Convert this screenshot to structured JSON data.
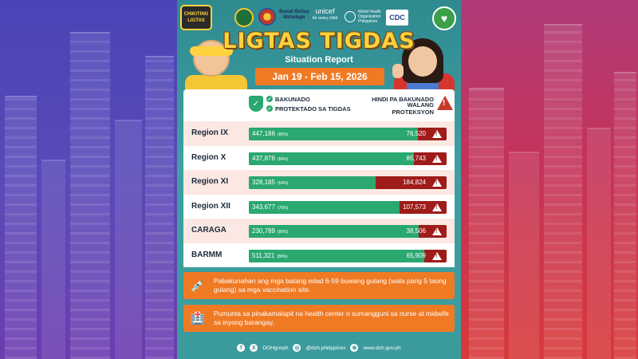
{
  "title": "LIGTAS TIGDAS",
  "subtitle": "Situation Report",
  "date_range": "Jan 19 - Feb 15, 2026",
  "logos": {
    "chikiting_line1": "CHIKITING",
    "chikiting_line2": "LIGTAS",
    "ibb_line1": "Bawat Buhay",
    "ibb_line2": "Mahalaga",
    "unicef": "unicef",
    "unicef_tag": "for every child",
    "who": "World Health Organization",
    "who_sub": "Philippines",
    "cdc": "CDC"
  },
  "legend": {
    "vaccinated_1": "BAKUNADO",
    "vaccinated_2": "PROTEKTADO SA TIGDAS",
    "unvaccinated_1": "HINDI PA BAKUNADO",
    "unvaccinated_2": "WALANG PROTEKSYON"
  },
  "colors": {
    "vaccinated": "#2aa870",
    "unvaccinated": "#9e1c1a",
    "accent": "#f07a24",
    "title": "#ffd23f"
  },
  "chart_data": {
    "type": "bar",
    "categories": [
      "Region IX",
      "Region X",
      "Region XI",
      "Region XII",
      "CARAGA",
      "BARMM"
    ],
    "series": [
      {
        "name": "BAKUNADO",
        "values": [
          447186,
          437876,
          328185,
          343677,
          230789,
          511321
        ]
      },
      {
        "name": "HINDI PA BAKUNADO",
        "values": [
          76520,
          85743,
          184824,
          107573,
          38506,
          65909
        ]
      }
    ],
    "percent_vaccinated": [
      85,
      84,
      64,
      76,
      86,
      89
    ],
    "value_labels": [
      "447,186",
      "437,876",
      "328,185",
      "343,677",
      "230,789",
      "511,321"
    ],
    "percent_labels": [
      "(85%)",
      "(84%)",
      "(64%)",
      "(76%)",
      "(86%)",
      "(89%)"
    ],
    "unvaccinated_labels": [
      "76,520",
      "85,743",
      "184,824",
      "107,573",
      "38,506",
      "65,909"
    ]
  },
  "notes": [
    {
      "icon": "vaccine-icon",
      "text": "Pabakunahan ang mga batang edad 6-59 buwang gulang (wala pang 5 taong gulang) sa mga vaccination site."
    },
    {
      "icon": "health-center-icon",
      "text": "Pumunta sa pinakamalapit na health center o sumangguni sa nurse at midwife sa inyong barangay."
    }
  ],
  "footer": {
    "facebook_x": "DOHgovph",
    "instagram": "@doh.philippines",
    "website": "www.doh.gov.ph"
  }
}
